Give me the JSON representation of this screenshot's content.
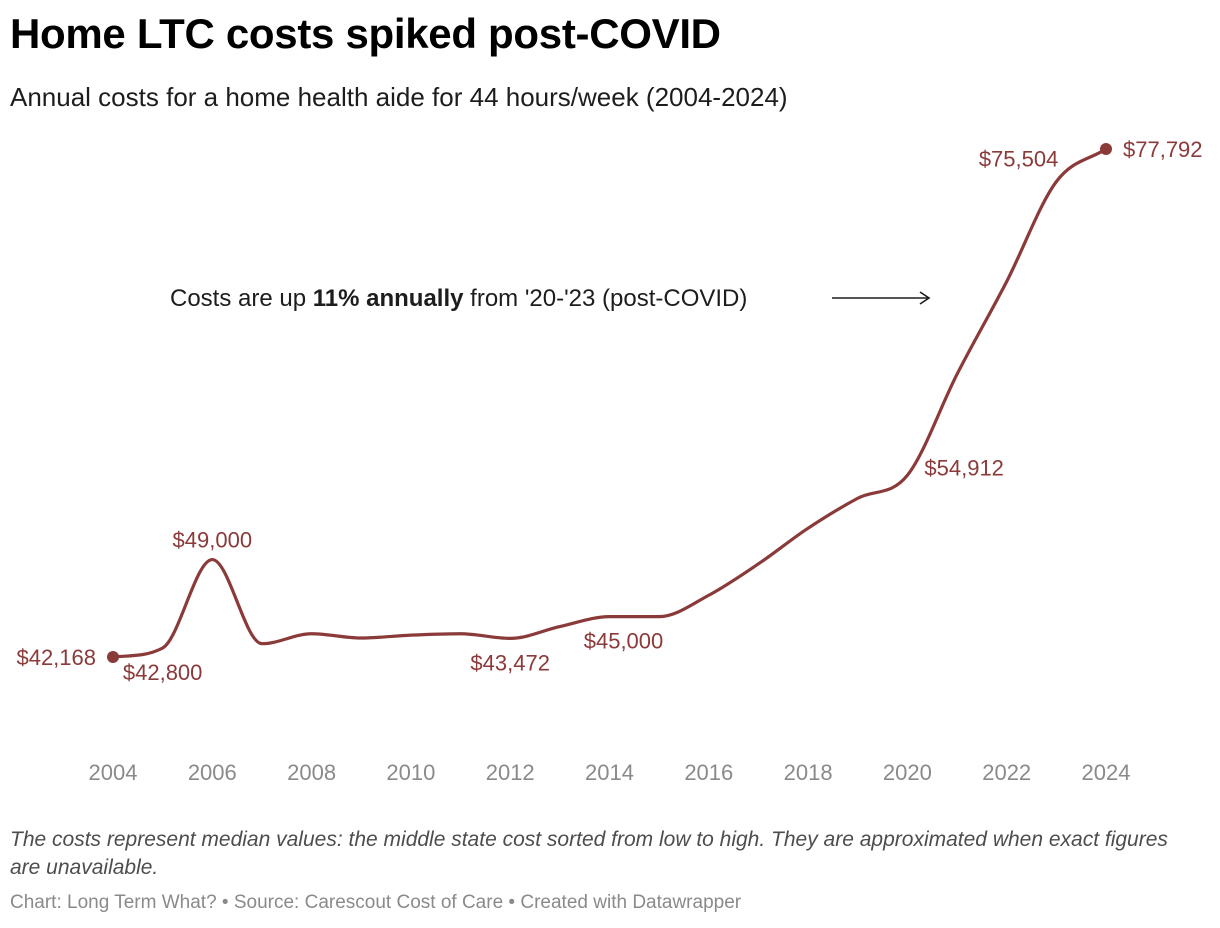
{
  "title": "Home LTC costs spiked post-COVID",
  "subtitle": "Annual costs for a home health aide for 44 hours/week (2004-2024)",
  "chart_data": {
    "type": "line",
    "title": "Home LTC costs spiked post-COVID",
    "subtitle": "Annual costs for a home health aide for 44 hours/week (2004-2024)",
    "xlabel": "",
    "ylabel": "",
    "x": [
      2004,
      2005,
      2006,
      2007,
      2008,
      2009,
      2010,
      2011,
      2012,
      2013,
      2014,
      2015,
      2016,
      2017,
      2018,
      2019,
      2020,
      2021,
      2022,
      2023,
      2024
    ],
    "series": [
      {
        "name": "Annual cost",
        "values": [
          42168,
          42800,
          49000,
          43100,
          43800,
          43500,
          43700,
          43800,
          43472,
          44300,
          45000,
          45000,
          46500,
          48700,
          51200,
          53300,
          54912,
          62000,
          68500,
          75504,
          77792
        ]
      }
    ],
    "xlim": [
      2004,
      2024
    ],
    "ylim": [
      40000,
      80000
    ],
    "x_ticks": [
      "2004",
      "2006",
      "2008",
      "2010",
      "2012",
      "2014",
      "2016",
      "2018",
      "2020",
      "2022",
      "2024"
    ],
    "grid": false,
    "color": "#8b3a3a",
    "labels": [
      {
        "year": 2004,
        "text": "$42,168",
        "pos": "left",
        "dot": true
      },
      {
        "year": 2005,
        "text": "$42,800",
        "pos": "below"
      },
      {
        "year": 2006,
        "text": "$49,000",
        "pos": "above"
      },
      {
        "year": 2012,
        "text": "$43,472",
        "pos": "below"
      },
      {
        "year": 2014,
        "text": "$45,000",
        "pos": "below-right"
      },
      {
        "year": 2020,
        "text": "$54,912",
        "pos": "right"
      },
      {
        "year": 2023,
        "text": "$75,504",
        "pos": "left"
      },
      {
        "year": 2024,
        "text": "$77,792",
        "pos": "right",
        "dot": true
      }
    ],
    "annotation": {
      "pre": "Costs are up ",
      "bold": "11% annually",
      "post": " from '20-'23 (post-COVID)"
    }
  },
  "note": "The costs represent median values: the middle state cost sorted from low to high. They are approximated when exact figures are unavailable.",
  "byline": {
    "chart": "Chart: Long Term What?",
    "sep1": " • ",
    "source": "Source: Carescout Cost of Care",
    "sep2": " • ",
    "created": "Created with Datawrapper"
  }
}
